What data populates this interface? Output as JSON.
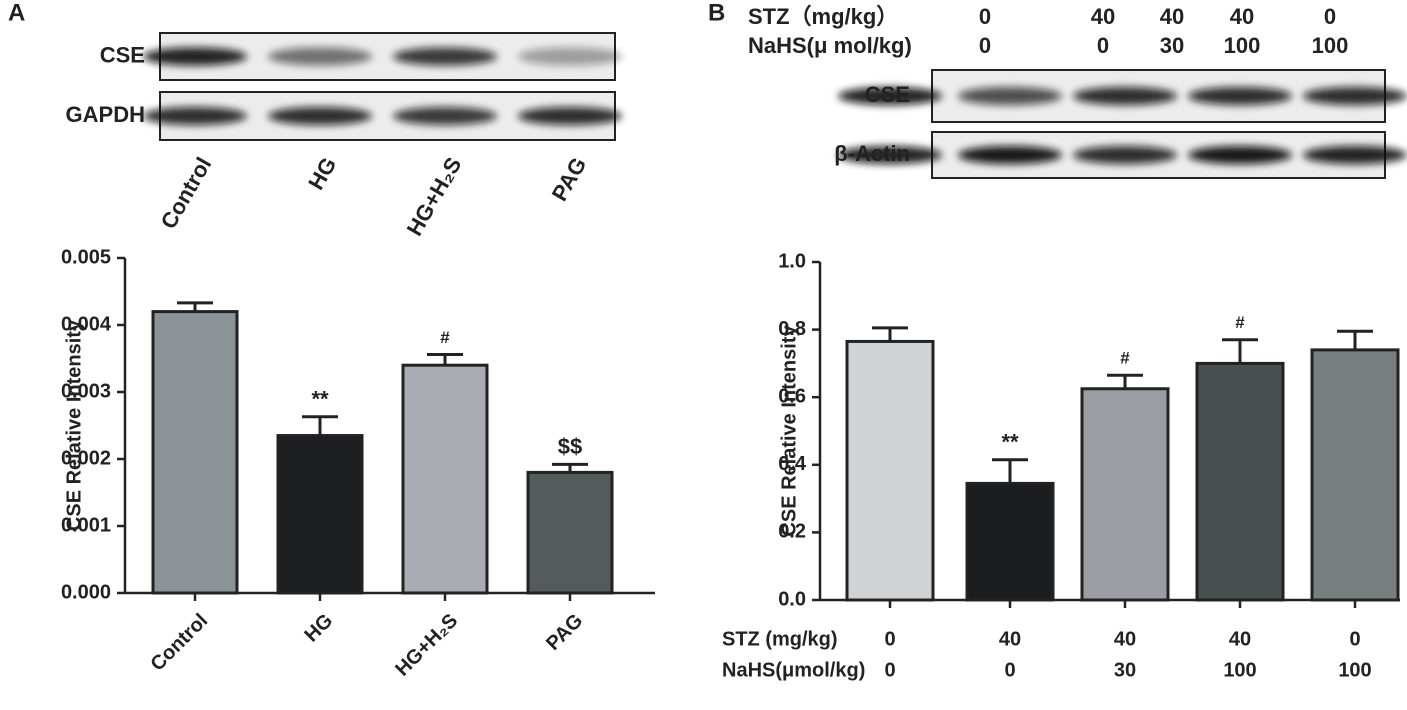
{
  "chart_data": [
    {
      "type": "bar",
      "panel_label": "A",
      "blot": {
        "rows": [
          "CSE",
          "GAPDH"
        ],
        "lane_labels": [
          "Control",
          "HG",
          "HG+H₂S",
          "PAG"
        ]
      },
      "y_label": "CSE Relative Intensity",
      "categories": [
        "Control",
        "HG",
        "HG+H₂S",
        "PAG"
      ],
      "values": [
        0.0042,
        0.00235,
        0.0034,
        0.0018
      ],
      "errors": [
        0.00013,
        0.00028,
        0.00016,
        0.00012
      ],
      "annotations": [
        null,
        "**",
        "#",
        "$$"
      ],
      "colors": [
        "#8c9396",
        "#1e1f21",
        "#a9adb3",
        "#555b5d"
      ],
      "ylim": [
        0,
        0.005
      ],
      "yticks": [
        {
          "value": 0,
          "label": "0.000"
        },
        {
          "value": 0.001,
          "label": "0.001"
        },
        {
          "value": 0.002,
          "label": "0.002"
        },
        {
          "value": 0.003,
          "label": "0.003"
        },
        {
          "value": 0.004,
          "label": "0.004"
        },
        {
          "value": 0.005,
          "label": "0.005"
        }
      ]
    },
    {
      "type": "bar",
      "panel_label": "B",
      "blot": {
        "rows": [
          "CSE",
          "β-Actin"
        ],
        "header_rows": [
          {
            "label": "STZ（mg/kg）",
            "values": [
              0,
              40,
              40,
              40,
              0
            ]
          },
          {
            "label": "NaHS(μ mol/kg)",
            "values": [
              0,
              0,
              30,
              100,
              100
            ]
          }
        ]
      },
      "y_label": "CSE Relative Intensity",
      "category_rows": [
        {
          "label": "STZ (mg/kg)",
          "values": [
            0,
            40,
            40,
            40,
            0
          ]
        },
        {
          "label": "NaHS(μmol/kg)",
          "values": [
            0,
            0,
            30,
            100,
            100
          ]
        }
      ],
      "values": [
        0.765,
        0.345,
        0.625,
        0.7,
        0.74
      ],
      "errors": [
        0.04,
        0.07,
        0.04,
        0.07,
        0.055
      ],
      "annotations": [
        null,
        "**",
        "#",
        "#",
        null
      ],
      "colors": [
        "#cfd3d6",
        "#1c1d1f",
        "#9a9ea2",
        "#4a4f51",
        "#797e81"
      ],
      "ylim": [
        0,
        1
      ],
      "yticks": [
        {
          "value": 0,
          "label": "0.0"
        },
        0.2,
        0.4,
        0.6,
        0.8,
        {
          "value": 1,
          "label": "1.0"
        }
      ]
    }
  ]
}
